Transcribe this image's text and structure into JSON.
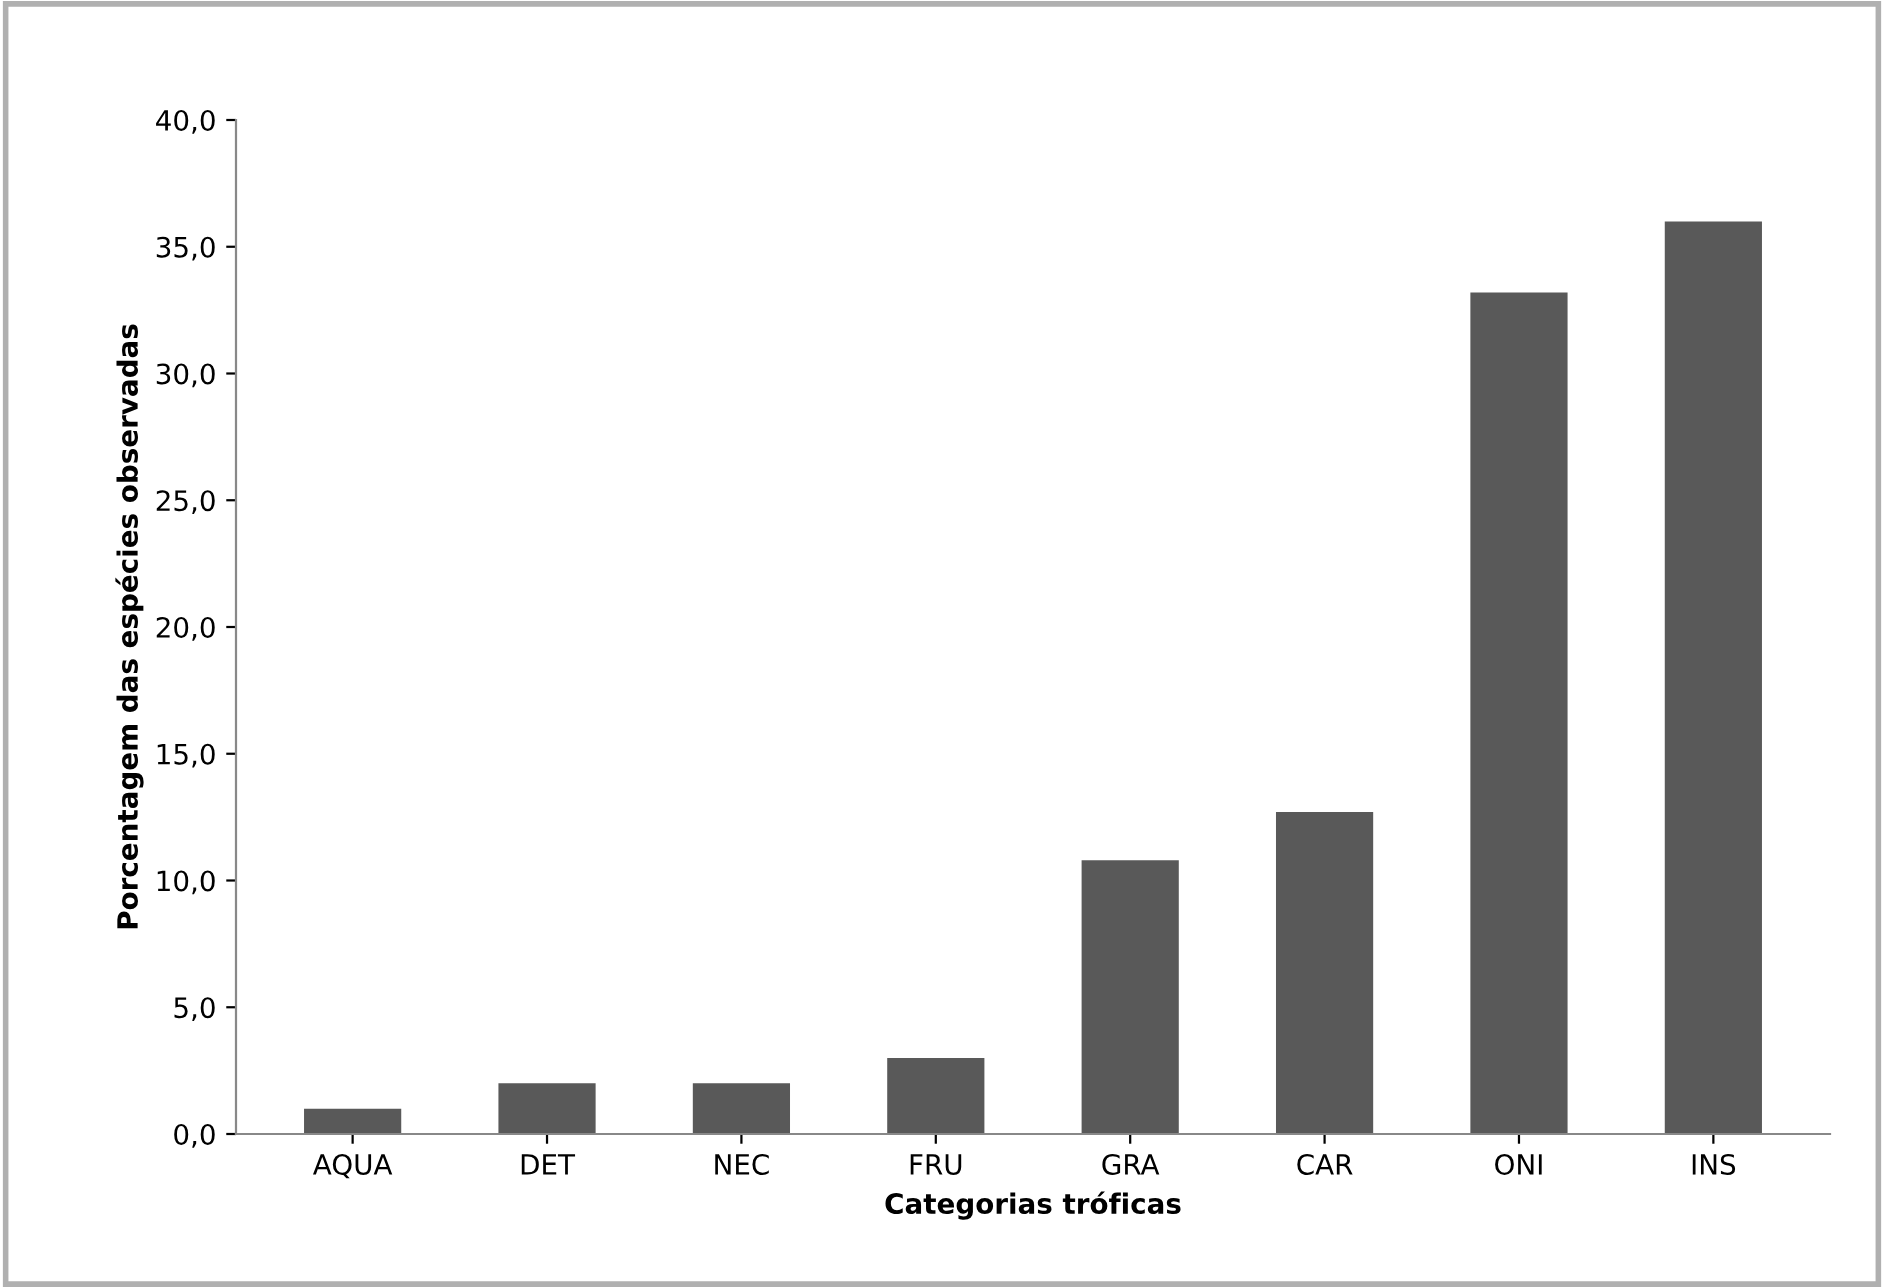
{
  "chart_data": {
    "type": "bar",
    "xlabel": "Categorias tróficas",
    "ylabel": "Porcentagem das espécies observadas",
    "categories": [
      "AQUA",
      "DET",
      "NEC",
      "FRU",
      "GRA",
      "CAR",
      "ONI",
      "INS"
    ],
    "values": [
      1.0,
      2.0,
      2.0,
      3.0,
      10.8,
      12.7,
      33.2,
      36.0
    ],
    "color": "#595959",
    "ylim": [
      0,
      40
    ],
    "yticks": [
      {
        "value": 0,
        "label": "0,0"
      },
      {
        "value": 5,
        "label": "5,0"
      },
      {
        "value": 10,
        "label": "10,0"
      },
      {
        "value": 15,
        "label": "15,0"
      },
      {
        "value": 20,
        "label": "20,0"
      },
      {
        "value": 25,
        "label": "25,0"
      },
      {
        "value": 30,
        "label": "30,0"
      },
      {
        "value": 35,
        "label": "35,0"
      },
      {
        "value": 40,
        "label": "40,0"
      }
    ],
    "grid": false,
    "legend": false
  }
}
